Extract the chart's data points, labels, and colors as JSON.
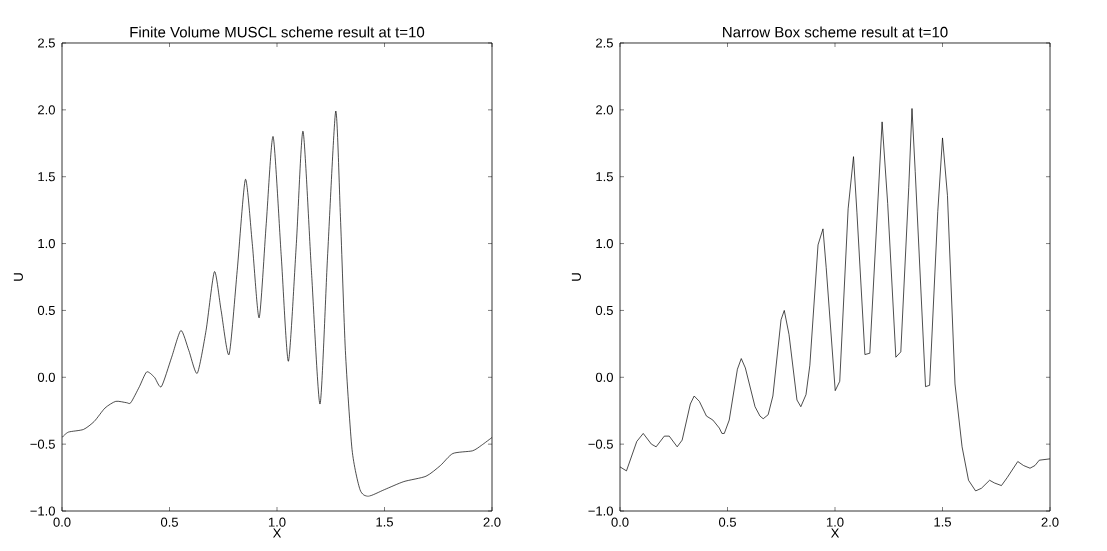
{
  "chart_data": [
    {
      "type": "line",
      "title": "Finite Volume MUSCL scheme result at t=10",
      "xlabel": "X",
      "ylabel": "U",
      "xlim": [
        0,
        2
      ],
      "ylim": [
        -1,
        2.5
      ],
      "xticks": [
        {
          "value": 0,
          "label": "0.0"
        },
        {
          "value": 0.5,
          "label": "0.5"
        },
        {
          "value": 1,
          "label": "1.0"
        },
        {
          "value": 1.5,
          "label": "1.5"
        },
        {
          "value": 2,
          "label": "2.0"
        }
      ],
      "yticks": [
        {
          "value": -1,
          "label": "−1.0"
        },
        {
          "value": -0.5,
          "label": "−0.5"
        },
        {
          "value": 0,
          "label": "0.0"
        },
        {
          "value": 0.5,
          "label": "0.5"
        },
        {
          "value": 1,
          "label": "1.0"
        },
        {
          "value": 1.5,
          "label": "1.5"
        },
        {
          "value": 2,
          "label": "2.0"
        },
        {
          "value": 2.5,
          "label": "2.5"
        }
      ],
      "marker": "none",
      "line_style": "solid",
      "series": [
        {
          "color": "#000000",
          "x": [
            0,
            0.03,
            0.1,
            0.15,
            0.2,
            0.25,
            0.3,
            0.32,
            0.36,
            0.394,
            0.43,
            0.462,
            0.51,
            0.553,
            0.59,
            0.629,
            0.67,
            0.709,
            0.74,
            0.777,
            0.815,
            0.853,
            0.885,
            0.917,
            0.95,
            0.982,
            1.02,
            1.053,
            1.09,
            1.121,
            1.16,
            1.2,
            1.235,
            1.273,
            1.295,
            1.318,
            1.349,
            1.386,
            1.424,
            1.5,
            1.59,
            1.693,
            1.76,
            1.818,
            1.909,
            1.95,
            2.0
          ],
          "values": [
            -0.45,
            -0.41,
            -0.39,
            -0.33,
            -0.23,
            -0.18,
            -0.19,
            -0.19,
            -0.07,
            0.04,
            0.0,
            -0.07,
            0.15,
            0.35,
            0.2,
            0.03,
            0.35,
            0.79,
            0.5,
            0.17,
            0.8,
            1.48,
            1.0,
            0.445,
            1.15,
            1.8,
            0.9,
            0.12,
            1.0,
            1.84,
            0.8,
            -0.2,
            0.9,
            1.99,
            1.2,
            0.2,
            -0.54,
            -0.84,
            -0.89,
            -0.84,
            -0.78,
            -0.74,
            -0.66,
            -0.57,
            -0.55,
            -0.51,
            -0.45
          ]
        }
      ]
    },
    {
      "type": "line",
      "title": "Narrow Box scheme result at t=10",
      "xlabel": "X",
      "ylabel": "U",
      "xlim": [
        0,
        2
      ],
      "ylim": [
        -1,
        2.5
      ],
      "xticks": [
        {
          "value": 0,
          "label": "0.0"
        },
        {
          "value": 0.5,
          "label": "0.5"
        },
        {
          "value": 1,
          "label": "1.0"
        },
        {
          "value": 1.5,
          "label": "1.5"
        },
        {
          "value": 2,
          "label": "2.0"
        }
      ],
      "yticks": [
        {
          "value": -1,
          "label": "−1.0"
        },
        {
          "value": -0.5,
          "label": "−0.5"
        },
        {
          "value": 0,
          "label": "0.0"
        },
        {
          "value": 0.5,
          "label": "0.5"
        },
        {
          "value": 1,
          "label": "1.0"
        },
        {
          "value": 1.5,
          "label": "1.5"
        },
        {
          "value": 2,
          "label": "2.0"
        },
        {
          "value": 2.5,
          "label": "2.5"
        }
      ],
      "marker": "none",
      "line_style": "solid",
      "series": [
        {
          "color": "#000000",
          "x": [
            0,
            0.03,
            0.078,
            0.108,
            0.146,
            0.168,
            0.206,
            0.229,
            0.266,
            0.289,
            0.327,
            0.345,
            0.369,
            0.402,
            0.432,
            0.462,
            0.474,
            0.485,
            0.508,
            0.546,
            0.564,
            0.583,
            0.628,
            0.651,
            0.666,
            0.689,
            0.711,
            0.749,
            0.764,
            0.786,
            0.823,
            0.841,
            0.865,
            0.883,
            0.921,
            0.944,
            0.959,
            1.001,
            1.022,
            1.061,
            1.086,
            1.102,
            1.139,
            1.162,
            1.219,
            1.245,
            1.283,
            1.306,
            1.343,
            1.358,
            1.373,
            1.421,
            1.44,
            1.478,
            1.5,
            1.523,
            1.558,
            1.591,
            1.621,
            1.654,
            1.681,
            1.719,
            1.741,
            1.774,
            1.801,
            1.85,
            1.877,
            1.907,
            1.93,
            1.95,
            2.0
          ],
          "values": [
            -0.67,
            -0.7,
            -0.48,
            -0.42,
            -0.5,
            -0.52,
            -0.44,
            -0.44,
            -0.52,
            -0.47,
            -0.2,
            -0.14,
            -0.18,
            -0.29,
            -0.32,
            -0.38,
            -0.42,
            -0.42,
            -0.32,
            0.06,
            0.14,
            0.07,
            -0.22,
            -0.29,
            -0.31,
            -0.28,
            -0.14,
            0.43,
            0.5,
            0.32,
            -0.17,
            -0.22,
            -0.13,
            0.09,
            0.99,
            1.11,
            0.82,
            -0.1,
            -0.03,
            1.26,
            1.65,
            1.23,
            0.17,
            0.18,
            1.91,
            1.3,
            0.15,
            0.19,
            1.42,
            2.01,
            1.54,
            -0.07,
            -0.06,
            1.24,
            1.79,
            1.36,
            -0.05,
            -0.52,
            -0.77,
            -0.85,
            -0.83,
            -0.77,
            -0.79,
            -0.81,
            -0.75,
            -0.63,
            -0.66,
            -0.68,
            -0.66,
            -0.62,
            -0.61
          ]
        }
      ]
    }
  ]
}
